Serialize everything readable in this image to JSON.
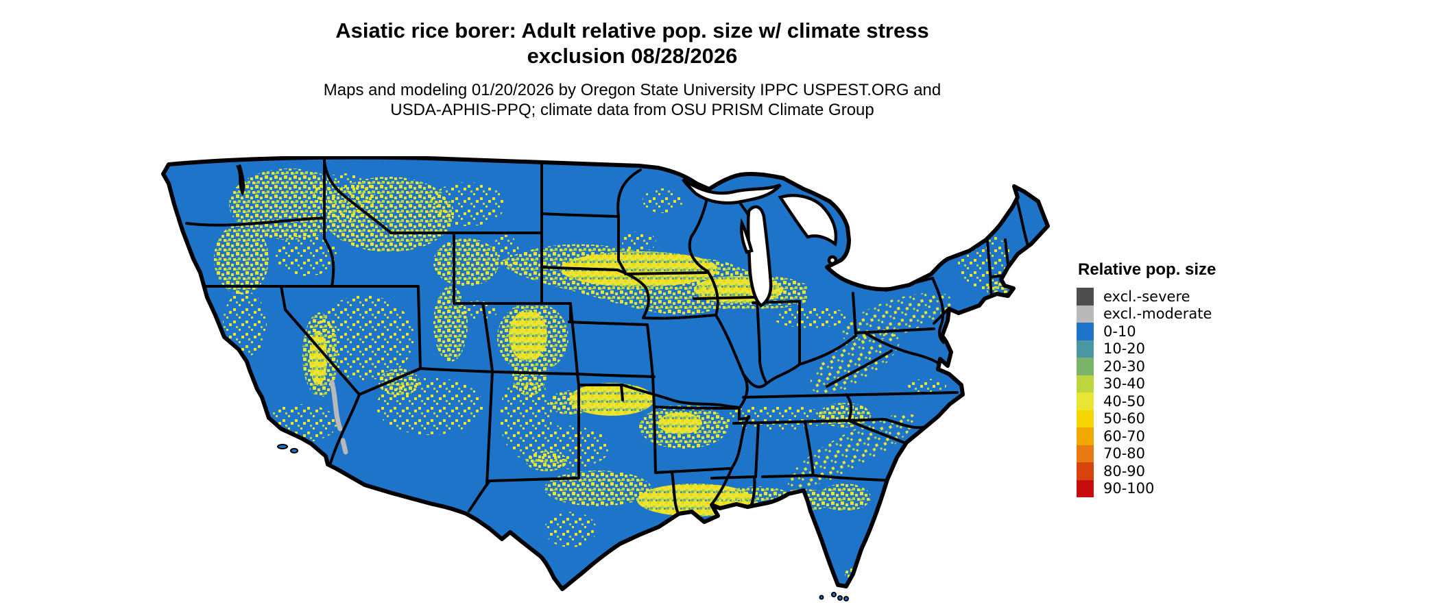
{
  "header": {
    "title_line1": "Asiatic rice borer: Adult relative pop. size w/ climate stress",
    "title_line2": "exclusion 08/28/2026",
    "subtitle_line1": "Maps and modeling 01/20/2026 by Oregon State University IPPC USPEST.ORG and",
    "subtitle_line2": "USDA-APHIS-PPQ; climate data from OSU PRISM Climate Group"
  },
  "legend": {
    "title": "Relative pop. size",
    "items": [
      {
        "label": "excl.-severe",
        "color": "#4d4d4d"
      },
      {
        "label": "excl.-moderate",
        "color": "#b9b9b9"
      },
      {
        "label": "0-10",
        "color": "#1d74c9"
      },
      {
        "label": "10-20",
        "color": "#4a96a3"
      },
      {
        "label": "20-30",
        "color": "#7cb36a"
      },
      {
        "label": "30-40",
        "color": "#bdd53f"
      },
      {
        "label": "40-50",
        "color": "#eae534"
      },
      {
        "label": "50-60",
        "color": "#f7d500"
      },
      {
        "label": "60-70",
        "color": "#f1a900"
      },
      {
        "label": "70-80",
        "color": "#e97912"
      },
      {
        "label": "80-90",
        "color": "#d8420b"
      },
      {
        "label": "90-100",
        "color": "#c60c0c"
      }
    ]
  },
  "map": {
    "base_fill": "#1d74c9",
    "border_color": "#000000",
    "water_background": "#ffffff",
    "exclusion_moderate_color": "#b9b9b9"
  }
}
